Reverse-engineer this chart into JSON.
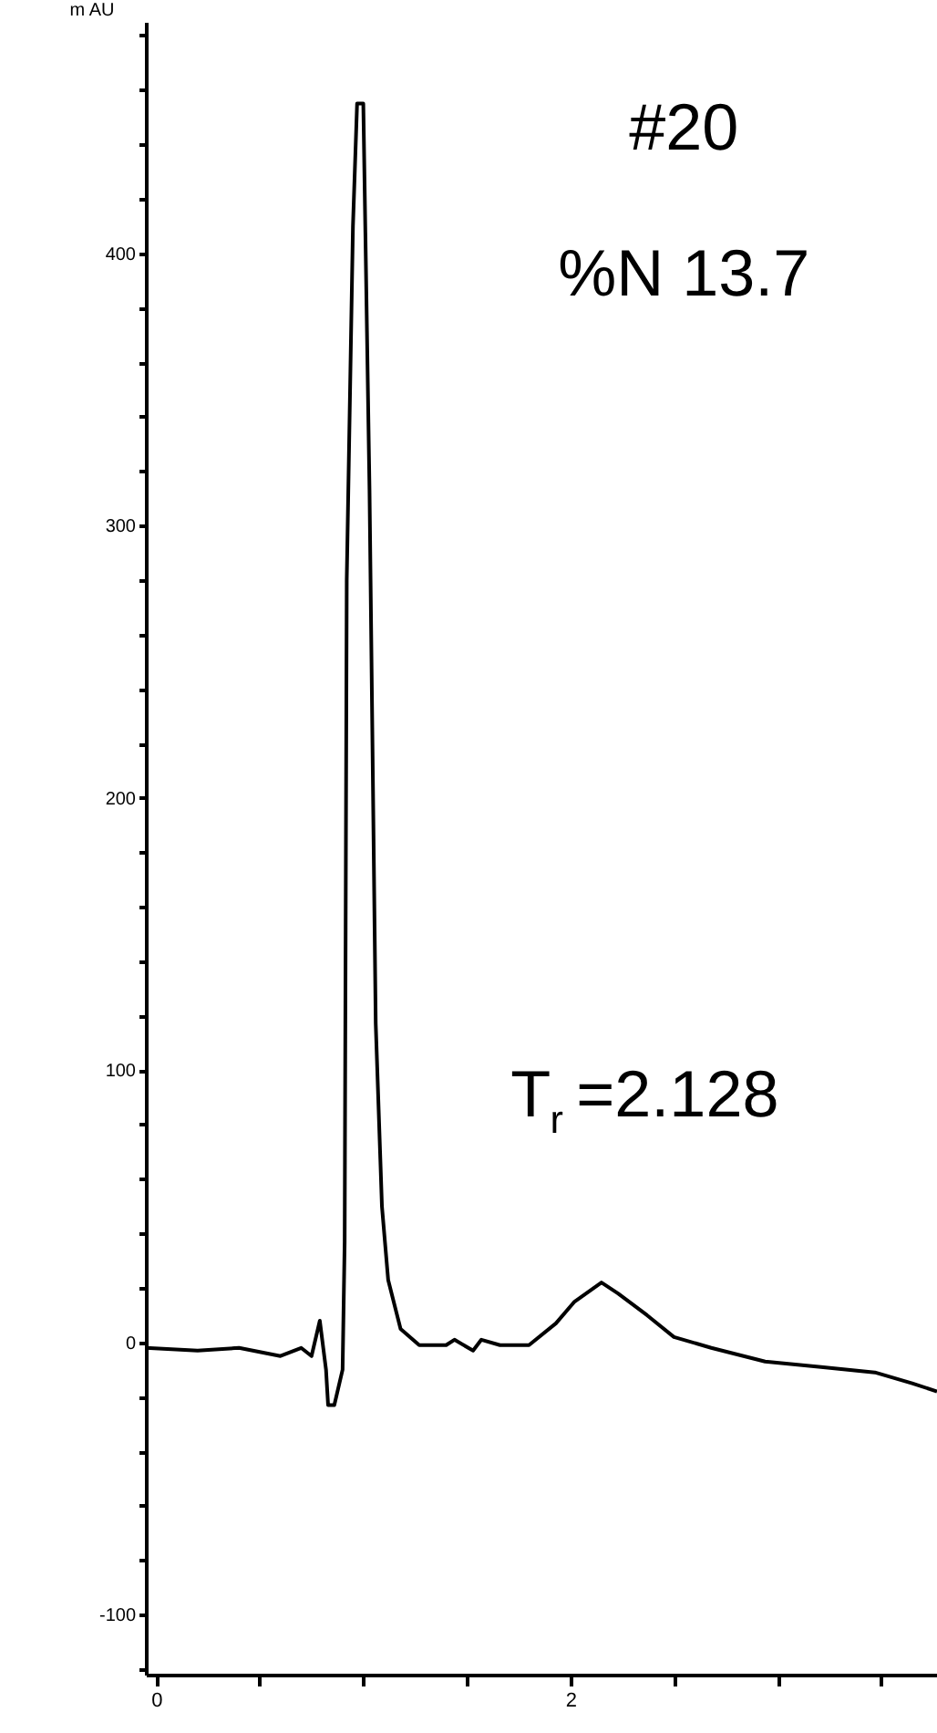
{
  "chart_data": {
    "type": "line",
    "ylabel": "m AU",
    "annotations": [
      "#20",
      "%N 13.7",
      "T$_{r}$ =2.128"
    ],
    "series": [
      {
        "color": "#000000",
        "x": [
          -0.05,
          0.2,
          0.4,
          0.6,
          0.7,
          0.75,
          0.79,
          0.82,
          0.83,
          0.86,
          0.9,
          0.91,
          0.92,
          0.95,
          0.97,
          1.0,
          1.03,
          1.06,
          1.09,
          1.12,
          1.18,
          1.27,
          1.4,
          1.44,
          1.53,
          1.57,
          1.66,
          1.8,
          1.93,
          2.02,
          2.15,
          2.23,
          2.37,
          2.5,
          2.68,
          2.94,
          3.21,
          3.47,
          3.65,
          3.77
        ],
        "values": [
          -2,
          -3,
          -2,
          -5,
          -2,
          -5,
          8,
          -10,
          -23,
          -23,
          -10,
          37,
          280,
          410,
          455,
          455,
          313,
          117,
          50,
          23,
          5,
          -1,
          -1,
          1,
          -3,
          1,
          -1,
          -1,
          7,
          15,
          22,
          18,
          10,
          2,
          -2,
          -7,
          -9,
          -11,
          -15,
          -18
        ]
      }
    ],
    "xlim": [
      -0.05,
      3.77
    ],
    "ylim": [
      -122,
      485
    ],
    "xticks": [
      0,
      {
        "value": 0.5,
        "label": null
      },
      {
        "value": 1,
        "label": null
      },
      {
        "value": 1.5,
        "label": null
      },
      2,
      {
        "value": 2.5,
        "label": null
      },
      {
        "value": 3,
        "label": null
      },
      {
        "value": 3.5,
        "label": null
      }
    ],
    "yticks": [
      {
        "value": -120,
        "label": null
      },
      -100,
      {
        "value": -80,
        "label": null
      },
      {
        "value": -60,
        "label": null
      },
      {
        "value": -40,
        "label": null
      },
      {
        "value": -20,
        "label": null
      },
      0,
      {
        "value": 20,
        "label": null
      },
      {
        "value": 40,
        "label": null
      },
      {
        "value": 60,
        "label": null
      },
      {
        "value": 80,
        "label": null
      },
      100,
      {
        "value": 120,
        "label": null
      },
      {
        "value": 140,
        "label": null
      },
      {
        "value": 160,
        "label": null
      },
      {
        "value": 180,
        "label": null
      },
      200,
      {
        "value": 220,
        "label": null
      },
      {
        "value": 240,
        "label": null
      },
      {
        "value": 260,
        "label": null
      },
      {
        "value": 280,
        "label": null
      },
      300,
      {
        "value": 320,
        "label": null
      },
      {
        "value": 340,
        "label": null
      },
      {
        "value": 360,
        "label": null
      },
      {
        "value": 380,
        "label": null
      },
      400,
      {
        "value": 420,
        "label": null
      },
      {
        "value": 440,
        "label": null
      },
      {
        "value": 460,
        "label": null
      },
      {
        "value": 480,
        "label": null
      }
    ],
    "grid": false,
    "marker": "none",
    "line_style": "solid"
  }
}
